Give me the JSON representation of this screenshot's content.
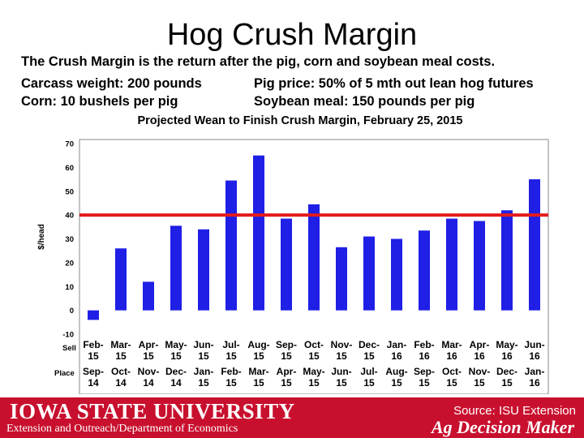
{
  "slide": {
    "title": "Hog Crush Margin",
    "line1": "The Crush Margin is the return after the pig, corn and soybean meal costs.",
    "line2a": "Carcass weight:  200 pounds",
    "line2b": "Pig price:  50% of 5 mth out lean hog futures",
    "line3a": "Corn:  10 bushels per pig",
    "line3b": "Soybean meal:  150 pounds per pig"
  },
  "footer": {
    "university": "IOWA STATE UNIVERSITY",
    "department": "Extension and Outreach/Department of Economics",
    "source": "Source: ISU Extension",
    "brand": "Ag Decision Maker"
  },
  "colors": {
    "bar": "#1f1fe6",
    "reference_line": "#e31b1b",
    "footer_bg": "#c8102e",
    "chart_title": "#1a1a8c"
  },
  "chart_data": {
    "type": "bar",
    "title": "Projected Wean to Finish Crush Margin, February 25, 2015",
    "ylabel": "$/head",
    "ylim": [
      -10,
      70
    ],
    "yticks": [
      -10,
      0,
      10,
      20,
      30,
      40,
      50,
      60,
      70
    ],
    "grid": false,
    "row_label_sell": "Sell",
    "row_label_place": "Place",
    "categories": [
      {
        "sell": [
          "Feb-",
          "15"
        ],
        "place": [
          "Sep-",
          "14"
        ]
      },
      {
        "sell": [
          "Mar-",
          "15"
        ],
        "place": [
          "Oct-",
          "14"
        ]
      },
      {
        "sell": [
          "Apr-",
          "15"
        ],
        "place": [
          "Nov-",
          "14"
        ]
      },
      {
        "sell": [
          "May-",
          "15"
        ],
        "place": [
          "Dec-",
          "14"
        ]
      },
      {
        "sell": [
          "Jun-",
          "15"
        ],
        "place": [
          "Jan-",
          "15"
        ]
      },
      {
        "sell": [
          "Jul-",
          "15"
        ],
        "place": [
          "Feb-",
          "15"
        ]
      },
      {
        "sell": [
          "Aug-",
          "15"
        ],
        "place": [
          "Mar-",
          "15"
        ]
      },
      {
        "sell": [
          "Sep-",
          "15"
        ],
        "place": [
          "Apr-",
          "15"
        ]
      },
      {
        "sell": [
          "Oct-",
          "15"
        ],
        "place": [
          "May-",
          "15"
        ]
      },
      {
        "sell": [
          "Nov-",
          "15"
        ],
        "place": [
          "Jun-",
          "15"
        ]
      },
      {
        "sell": [
          "Dec-",
          "15"
        ],
        "place": [
          "Jul-",
          "15"
        ]
      },
      {
        "sell": [
          "Jan-",
          "16"
        ],
        "place": [
          "Aug-",
          "15"
        ]
      },
      {
        "sell": [
          "Feb-",
          "16"
        ],
        "place": [
          "Sep-",
          "15"
        ]
      },
      {
        "sell": [
          "Mar-",
          "16"
        ],
        "place": [
          "Oct-",
          "15"
        ]
      },
      {
        "sell": [
          "Apr-",
          "16"
        ],
        "place": [
          "Nov-",
          "15"
        ]
      },
      {
        "sell": [
          "May-",
          "16"
        ],
        "place": [
          "Dec-",
          "15"
        ]
      },
      {
        "sell": [
          "Jun-",
          "16"
        ],
        "place": [
          "Jan-",
          "16"
        ]
      }
    ],
    "values": [
      -4,
      26,
      12,
      35.5,
      34,
      54.5,
      65,
      38.5,
      44.5,
      26.5,
      31,
      30,
      33.5,
      38.5,
      37.5,
      42,
      55
    ],
    "reference_line": 40
  }
}
